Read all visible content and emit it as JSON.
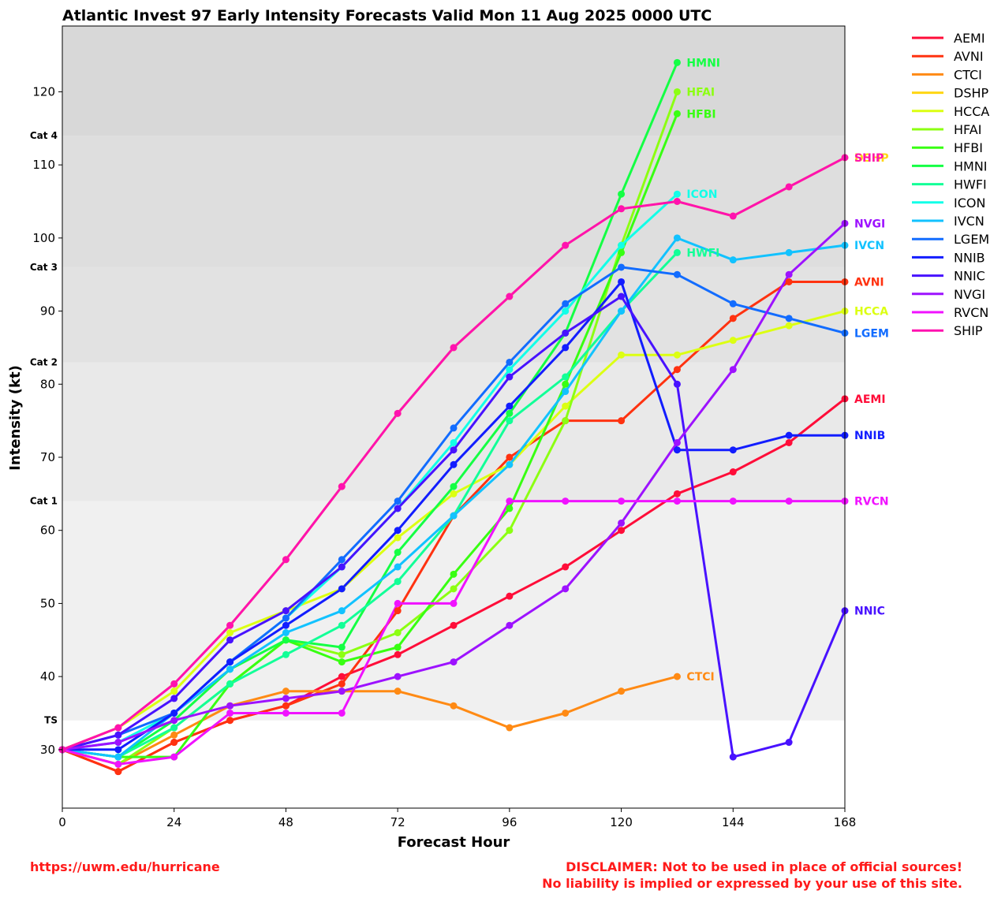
{
  "chart_data": {
    "type": "line",
    "title": "Atlantic Invest 97 Early Intensity Forecasts Valid Mon 11 Aug 2025 0000 UTC",
    "xlabel": "Forecast Hour",
    "ylabel": "Intensity (kt)",
    "xlim": [
      0,
      168
    ],
    "ylim": [
      22,
      129
    ],
    "xticks": [
      0,
      24,
      48,
      72,
      96,
      120,
      144,
      168
    ],
    "yticks": [
      30,
      40,
      50,
      60,
      70,
      80,
      90,
      100,
      110,
      120
    ],
    "categories_bands": [
      {
        "label": "TS",
        "from": 34,
        "to": 64,
        "color": "#f0f0f0"
      },
      {
        "label": "Cat 1",
        "from": 64,
        "to": 83,
        "color": "#e9e9e9"
      },
      {
        "label": "Cat 2",
        "from": 83,
        "to": 96,
        "color": "#e2e2e2"
      },
      {
        "label": "Cat 3",
        "from": 96,
        "to": 114,
        "color": "#dedede"
      },
      {
        "label": "Cat 4",
        "from": 114,
        "to": 129,
        "color": "#d8d8d8"
      }
    ],
    "legend_position": "right, outside plot",
    "grid": false,
    "series": [
      {
        "name": "AEMI",
        "color": "#ff0d39",
        "x": [
          0,
          12,
          24,
          36,
          48,
          60,
          72,
          84,
          96,
          108,
          120,
          132,
          144,
          156,
          168
        ],
        "values": [
          30,
          27,
          31,
          34,
          36,
          40,
          43,
          47,
          51,
          55,
          60,
          65,
          68,
          72,
          78
        ],
        "end_label": "AEMI"
      },
      {
        "name": "AVNI",
        "color": "#ff3210",
        "x": [
          0,
          12,
          24,
          36,
          48,
          60,
          72,
          84,
          96,
          108,
          120,
          132,
          144,
          156,
          168
        ],
        "values": [
          30,
          27,
          31,
          34,
          36,
          39,
          49,
          62,
          70,
          75,
          75,
          82,
          89,
          94,
          94
        ],
        "end_label": "AVNI"
      },
      {
        "name": "CTCI",
        "color": "#ff8a14",
        "x": [
          0,
          12,
          24,
          36,
          48,
          60,
          72,
          84,
          96,
          108,
          120,
          132
        ],
        "values": [
          30,
          28,
          32,
          36,
          38,
          38,
          38,
          36,
          33,
          35,
          38,
          40
        ],
        "end_label": "CTCI"
      },
      {
        "name": "DSHP",
        "color": "#ffd612",
        "x": [
          0,
          12,
          24,
          36,
          48,
          60,
          72,
          84,
          96,
          108,
          120,
          132,
          144,
          156,
          168
        ],
        "values": [
          30,
          33,
          39,
          47,
          56,
          66,
          76,
          85,
          92,
          99,
          104,
          105,
          103,
          107,
          111
        ],
        "end_label": "DSHP"
      },
      {
        "name": "HCCA",
        "color": "#dcff12",
        "x": [
          0,
          12,
          24,
          36,
          48,
          60,
          72,
          84,
          96,
          108,
          120,
          132,
          144,
          156,
          168
        ],
        "values": [
          30,
          33,
          38,
          46,
          49,
          52,
          59,
          65,
          69,
          77,
          84,
          84,
          86,
          88,
          90
        ],
        "end_label": "HCCA"
      },
      {
        "name": "HFAI",
        "color": "#8cff12",
        "x": [
          0,
          12,
          24,
          36,
          48,
          60,
          72,
          84,
          96,
          108,
          120,
          132
        ],
        "values": [
          30,
          28,
          33,
          39,
          45,
          43,
          46,
          52,
          60,
          75,
          99,
          120
        ],
        "end_label": "HFAI"
      },
      {
        "name": "HFBI",
        "color": "#38ff12",
        "x": [
          0,
          12,
          24,
          36,
          48,
          60,
          72,
          84,
          96,
          108,
          120,
          132
        ],
        "values": [
          30,
          29,
          29,
          39,
          45,
          42,
          44,
          54,
          63,
          80,
          98,
          117
        ],
        "end_label": "HFBI"
      },
      {
        "name": "HMNI",
        "color": "#14ff44",
        "x": [
          0,
          12,
          24,
          36,
          48,
          60,
          72,
          84,
          96,
          108,
          120,
          132
        ],
        "values": [
          30,
          29,
          34,
          41,
          45,
          44,
          57,
          66,
          76,
          87,
          106,
          124
        ],
        "end_label": "HMNI"
      },
      {
        "name": "HWFI",
        "color": "#12ff97",
        "x": [
          0,
          12,
          24,
          36,
          48,
          60,
          72,
          84,
          96,
          108,
          120,
          132
        ],
        "values": [
          30,
          29,
          33,
          39,
          43,
          47,
          53,
          62,
          75,
          81,
          90,
          98
        ],
        "end_label": "HWFI"
      },
      {
        "name": "ICON",
        "color": "#12ffe8",
        "x": [
          0,
          12,
          24,
          36,
          48,
          60,
          72,
          84,
          96,
          108,
          120,
          132
        ],
        "values": [
          30,
          31,
          35,
          42,
          48,
          55,
          63,
          72,
          82,
          90,
          99,
          106
        ],
        "end_label": "ICON"
      },
      {
        "name": "IVCN",
        "color": "#12c2ff",
        "x": [
          0,
          12,
          24,
          36,
          48,
          60,
          72,
          84,
          96,
          108,
          120,
          132,
          144,
          156,
          168
        ],
        "values": [
          30,
          29,
          35,
          41,
          46,
          49,
          55,
          62,
          69,
          79,
          90,
          100,
          97,
          98,
          99
        ],
        "end_label": "IVCN"
      },
      {
        "name": "LGEM",
        "color": "#126cff",
        "x": [
          0,
          12,
          24,
          36,
          48,
          60,
          72,
          84,
          96,
          108,
          120,
          132,
          144,
          156,
          168
        ],
        "values": [
          30,
          32,
          35,
          42,
          48,
          56,
          64,
          74,
          83,
          91,
          96,
          95,
          91,
          89,
          87
        ],
        "end_label": "LGEM"
      },
      {
        "name": "NNIB",
        "color": "#121dff",
        "x": [
          0,
          12,
          24,
          36,
          48,
          60,
          72,
          84,
          96,
          108,
          120,
          132,
          144,
          156,
          168
        ],
        "values": [
          30,
          30,
          35,
          42,
          47,
          52,
          60,
          69,
          77,
          85,
          94,
          71,
          71,
          73,
          73
        ],
        "end_label": "NNIB"
      },
      {
        "name": "NNIC",
        "color": "#4812ff",
        "x": [
          0,
          12,
          24,
          36,
          48,
          60,
          72,
          84,
          96,
          108,
          120,
          132,
          144,
          156,
          168
        ],
        "values": [
          30,
          32,
          37,
          45,
          49,
          55,
          63,
          71,
          81,
          87,
          92,
          80,
          29,
          31,
          49
        ],
        "end_label": "NNIC"
      },
      {
        "name": "NVGI",
        "color": "#9d12ff",
        "x": [
          0,
          12,
          24,
          36,
          48,
          60,
          72,
          84,
          96,
          108,
          120,
          132,
          144,
          156,
          168
        ],
        "values": [
          30,
          31,
          34,
          36,
          37,
          38,
          40,
          42,
          47,
          52,
          61,
          72,
          82,
          95,
          102
        ],
        "end_label": "NVGI"
      },
      {
        "name": "RVCN",
        "color": "#f012ff",
        "x": [
          0,
          12,
          24,
          36,
          48,
          60,
          72,
          84,
          96,
          108,
          120,
          132,
          144,
          156,
          168
        ],
        "values": [
          30,
          28,
          29,
          35,
          35,
          35,
          50,
          50,
          64,
          64,
          64,
          64,
          64,
          64,
          64
        ],
        "end_label": "RVCN"
      },
      {
        "name": "SHIP",
        "color": "#ff12b0",
        "x": [
          0,
          12,
          24,
          36,
          48,
          60,
          72,
          84,
          96,
          108,
          120,
          132,
          144,
          156,
          168
        ],
        "values": [
          30,
          33,
          39,
          47,
          56,
          66,
          76,
          85,
          92,
          99,
          104,
          105,
          103,
          107,
          111
        ],
        "end_label": "SHIP"
      }
    ]
  },
  "footer": {
    "url": "https://uwm.edu/hurricane",
    "disclaimer_line1": "DISCLAIMER: Not to be used in place of official sources!",
    "disclaimer_line2": "No liability is implied or expressed by your use of this site."
  }
}
